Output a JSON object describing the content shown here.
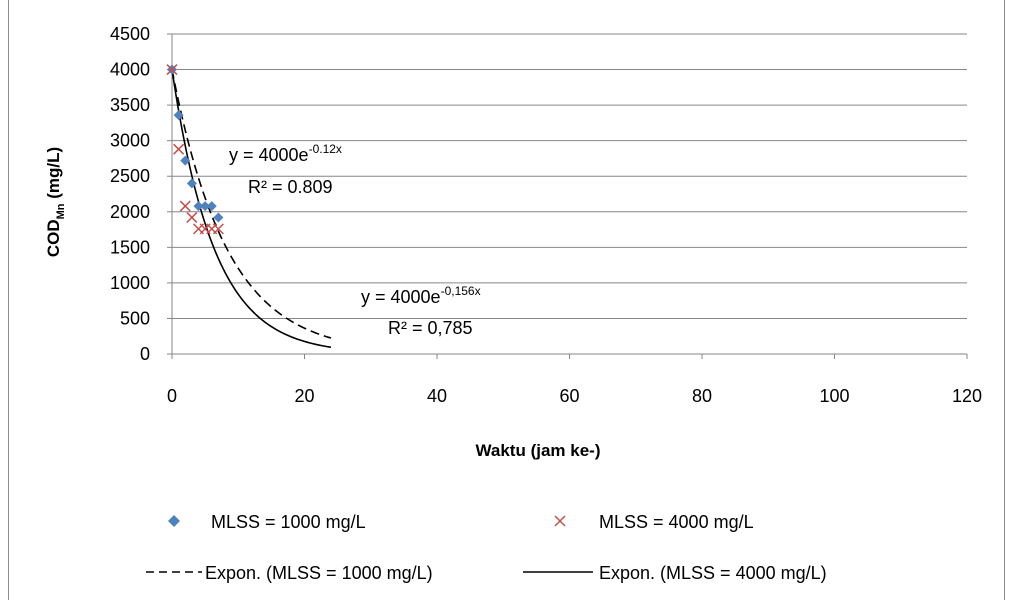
{
  "chart_data": {
    "type": "scatter",
    "title": "",
    "xlabel": "Waktu (jam ke-)",
    "ylabel_main": "COD",
    "ylabel_sub": "Mn",
    "ylabel_unit": " (mg/L)",
    "xlim": [
      0,
      120
    ],
    "ylim": [
      0,
      4500
    ],
    "x_ticks": [
      0,
      20,
      40,
      60,
      80,
      100,
      120
    ],
    "y_ticks": [
      0,
      500,
      1000,
      1500,
      2000,
      2500,
      3000,
      3500,
      4000,
      4500
    ],
    "grid": "horizontal",
    "legend_position": "bottom",
    "series": [
      {
        "name": "MLSS = 1000 mg/L",
        "marker": "diamond",
        "color": "#4f81bd",
        "x": [
          0,
          1,
          2,
          3,
          4,
          5,
          6,
          7
        ],
        "y": [
          4000,
          3360,
          2720,
          2400,
          2080,
          2080,
          2080,
          1920
        ]
      },
      {
        "name": "MLSS = 4000 mg/L",
        "marker": "x",
        "color": "#c0504d",
        "x": [
          0,
          1,
          2,
          3,
          4,
          5,
          6,
          7
        ],
        "y": [
          4000,
          2880,
          2080,
          1920,
          1760,
          1760,
          1760,
          1760
        ]
      }
    ],
    "trendlines": [
      {
        "name": "Expon. (MLSS = 1000 mg/L)",
        "style": "dashed",
        "color": "#000000",
        "a": 4000,
        "b": -0.12,
        "x_range": [
          0,
          24
        ],
        "equation_base": "y = 4000e",
        "equation_exp": "-0.12x",
        "r2": "R² = 0.809"
      },
      {
        "name": "Expon. (MLSS = 4000 mg/L)",
        "style": "solid",
        "color": "#000000",
        "a": 4000,
        "b": -0.156,
        "x_range": [
          0,
          24
        ],
        "equation_base": "y = 4000e",
        "equation_exp": "-0,156x",
        "r2": "R² = 0,785"
      }
    ]
  }
}
